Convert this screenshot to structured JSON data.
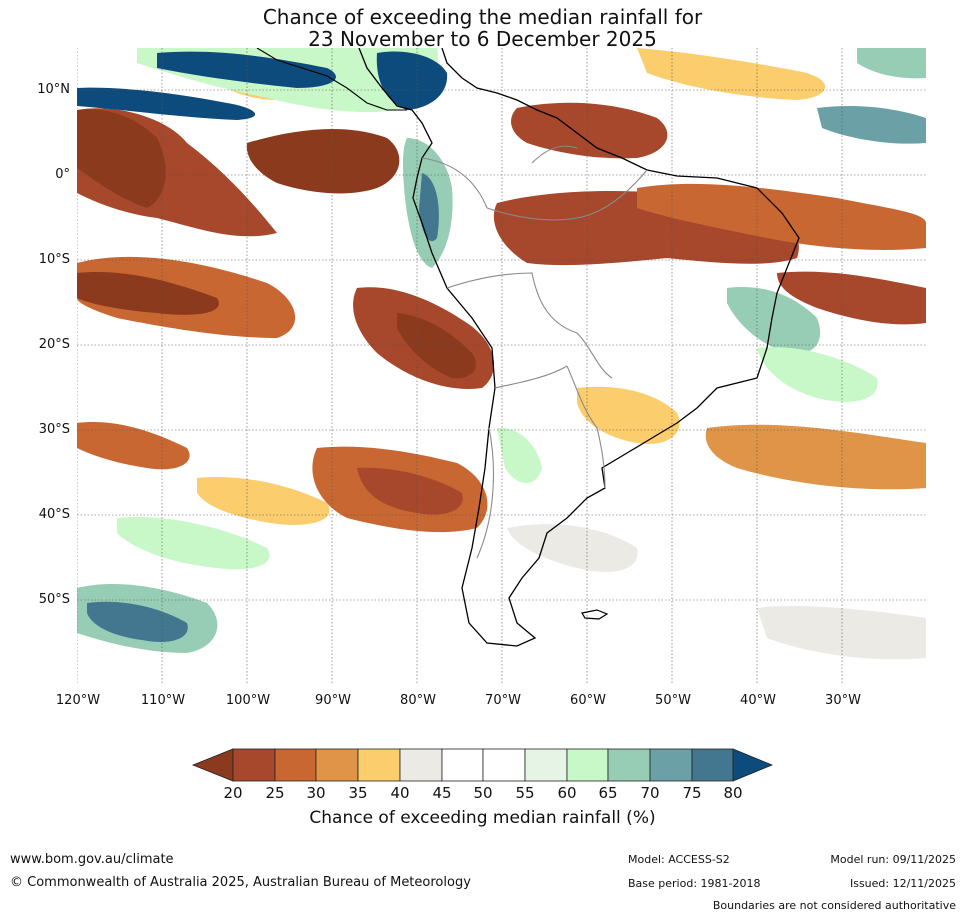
{
  "title": {
    "line1": "Chance of exceeding the median rainfall for",
    "line2": "23 November to 6 December 2025"
  },
  "map": {
    "lat_labels": [
      "10°N",
      "0°",
      "10°S",
      "20°S",
      "30°S",
      "40°S",
      "50°S"
    ],
    "lon_labels": [
      "120°W",
      "110°W",
      "100°W",
      "90°W",
      "80°W",
      "70°W",
      "60°W",
      "50°W",
      "40°W",
      "30°W"
    ]
  },
  "colorbar": {
    "title": "Chance of exceeding median rainfall (%)",
    "labels": [
      "20",
      "25",
      "30",
      "35",
      "40",
      "45",
      "50",
      "55",
      "60",
      "65",
      "70",
      "75",
      "80"
    ],
    "colors": [
      "#8c3a1e",
      "#a7472b",
      "#c96732",
      "#df9447",
      "#fbcd6c",
      "#eceae5",
      "#ffffff",
      "#ffffff",
      "#e6f4e6",
      "#c8f7c8",
      "#98cdb5",
      "#6aa0a6",
      "#42778f",
      "#0d4b7c"
    ]
  },
  "footer": {
    "website": "www.bom.gov.au/climate",
    "copyright": "© Commonwealth of Australia 2025, Australian Bureau of Meteorology",
    "model": "Model: ACCESS-S2",
    "model_run": "Model run: 09/11/2025",
    "base_period": "Base period: 1981-2018",
    "issued": "Issued: 12/11/2025",
    "disclaimer": "Boundaries are not considered authoritative"
  }
}
